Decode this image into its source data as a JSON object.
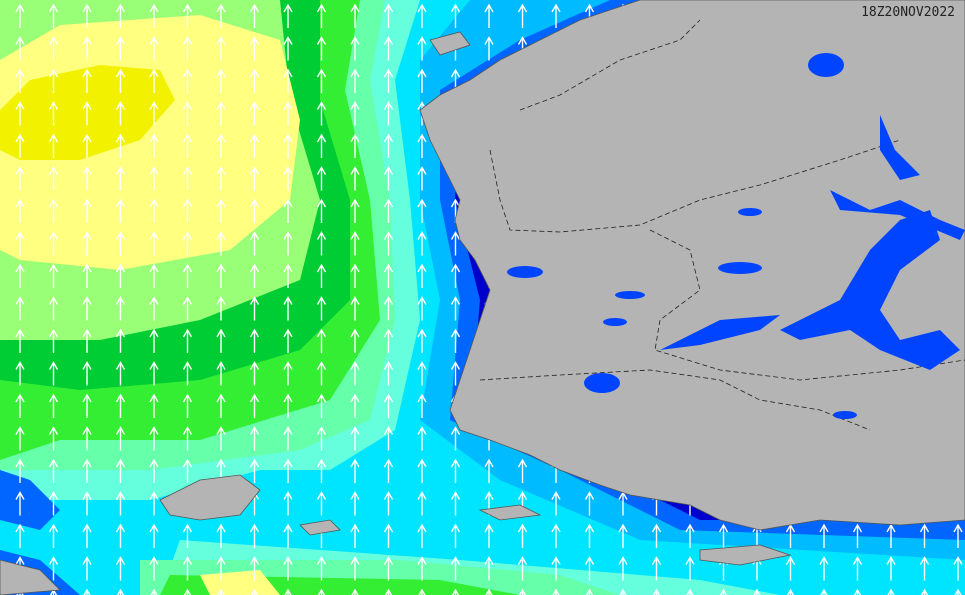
{
  "timestamp": "18Z20NOV2022"
}
